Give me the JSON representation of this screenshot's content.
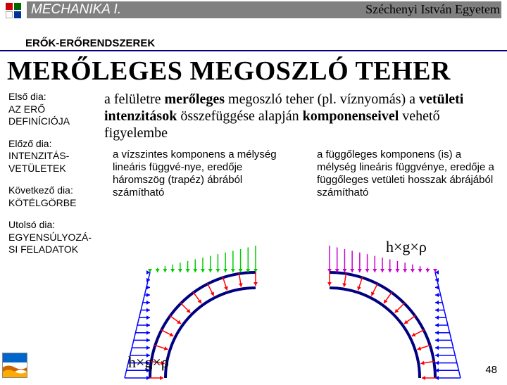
{
  "header": {
    "logo_colors": [
      "#cc0000",
      "#006600",
      "#ffffff",
      "#003399"
    ],
    "course": "MECHANIKA I.",
    "university": "Széchenyi István Egyetem",
    "subtitle": "ERŐK-ERŐRENDSZEREK"
  },
  "title": "MERŐLEGES MEGOSZLÓ TEHER",
  "nav": {
    "first": {
      "label": "Első dia:",
      "target": "AZ ERŐ DEFINÍCIÓJA"
    },
    "prev": {
      "label": "Előző dia:",
      "target": "INTENZITÁS-VETÜLETEK"
    },
    "next": {
      "label": "Következő dia:",
      "target": "KÖTÉLGÖRBE"
    },
    "last": {
      "label": "Utolsó dia:",
      "target": "EGYENSÚLYOZÁ-SI FELADATOK"
    }
  },
  "intro": {
    "pre": "a felületre ",
    "bold1": "merőleges",
    "mid1": " megoszló teher (pl. víznyomás) a ",
    "bold2": "vetületi intenzitások",
    "mid2": " összefüggése alapján ",
    "bold3": "komponenseivel",
    "post": " vehető figyelembe"
  },
  "col_left": "a vízszintes komponens a mélység lineáris függvé-nye, eredője háromszög (trapéz) ábrából számítható",
  "col_right": "a függőleges komponens (is) a mélység lineáris függvénye, eredője a függőleges vetületi hosszak ábrájából számítható",
  "formula_left": "h×g×ρ",
  "formula_right": "h×g×ρ",
  "page_number": "48",
  "diagram": {
    "arc_stroke": "#000080",
    "arc_stroke_width": 4,
    "arrow_color_h": "#0000ff",
    "arrow_color_v": "#00cc00",
    "arrow_color_rad": "#ff0000",
    "arrow_color_v2": "#cc00cc",
    "arrow_count": 14,
    "arc_radius_outer": 150,
    "arc_radius_inner": 128
  },
  "footer_icon": {
    "top_band": "#0066cc",
    "wave1": "#cc6600",
    "wave2": "#ffaa00",
    "bg": "#ffffff"
  }
}
